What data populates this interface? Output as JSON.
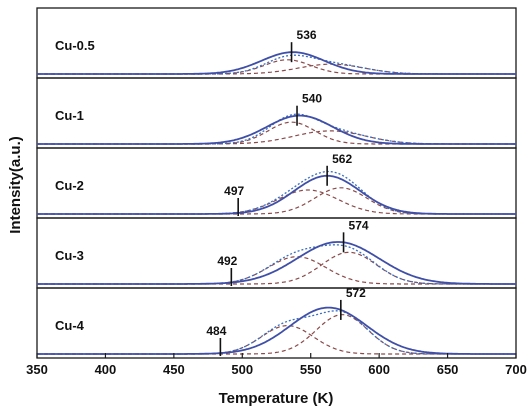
{
  "chart_data": {
    "type": "line",
    "title": "",
    "xlabel": "Temperature (K)",
    "ylabel": "Intensity(a.u.)",
    "xlim": [
      350,
      700
    ],
    "x_ticks": [
      350,
      400,
      450,
      500,
      550,
      600,
      650,
      700
    ],
    "grid": false,
    "legend": "none",
    "colors": {
      "measured": "#3f4fa8",
      "fit": "#3a6ec2",
      "component": "#8a4a4a",
      "axis": "#1a1a1a"
    },
    "panels": [
      {
        "name": "Cu-0.5",
        "peak_labels": [
          {
            "value": "536",
            "x": 536
          }
        ],
        "components": [
          {
            "center": 533,
            "sigma": 17,
            "amp": 0.26
          },
          {
            "center": 565,
            "sigma": 24,
            "amp": 0.18
          }
        ],
        "measured_peak": {
          "center": 537,
          "sigma": 23,
          "amp": 0.4
        }
      },
      {
        "name": "Cu-1",
        "peak_labels": [
          {
            "value": "540",
            "x": 540
          }
        ],
        "components": [
          {
            "center": 536,
            "sigma": 17,
            "amp": 0.4
          },
          {
            "center": 564,
            "sigma": 26,
            "amp": 0.24
          }
        ],
        "measured_peak": {
          "center": 542,
          "sigma": 24,
          "amp": 0.52
        }
      },
      {
        "name": "Cu-2",
        "peak_labels": [
          {
            "value": "497",
            "x": 497
          },
          {
            "value": "562",
            "x": 562
          }
        ],
        "components": [
          {
            "center": 548,
            "sigma": 22,
            "amp": 0.44
          },
          {
            "center": 572,
            "sigma": 19,
            "amp": 0.48
          }
        ],
        "measured_peak": {
          "center": 562,
          "sigma": 24,
          "amp": 0.7
        }
      },
      {
        "name": "Cu-3",
        "peak_labels": [
          {
            "value": "492",
            "x": 492
          },
          {
            "value": "574",
            "x": 574
          }
        ],
        "components": [
          {
            "center": 540,
            "sigma": 21,
            "amp": 0.5
          },
          {
            "center": 578,
            "sigma": 20,
            "amp": 0.58
          }
        ],
        "measured_peak": {
          "center": 570,
          "sigma": 30,
          "amp": 0.77
        }
      },
      {
        "name": "Cu-4",
        "peak_labels": [
          {
            "value": "484",
            "x": 484
          },
          {
            "value": "572",
            "x": 572
          }
        ],
        "components": [
          {
            "center": 533,
            "sigma": 19,
            "amp": 0.52
          },
          {
            "center": 573,
            "sigma": 19,
            "amp": 0.72
          }
        ],
        "measured_peak": {
          "center": 563,
          "sigma": 28,
          "amp": 0.85
        }
      }
    ]
  }
}
